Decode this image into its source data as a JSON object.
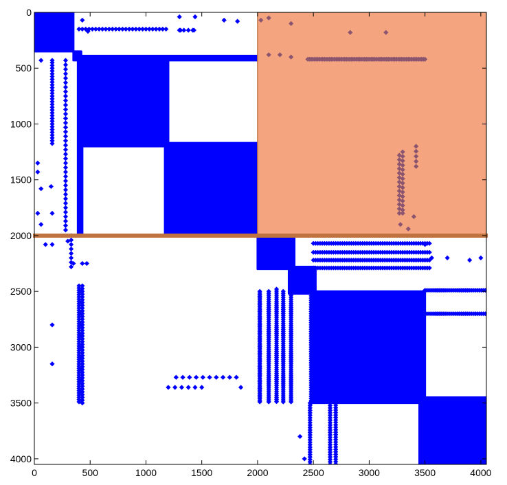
{
  "chart_data": {
    "type": "scatter",
    "title": "",
    "xlabel": "",
    "ylabel": "",
    "xlim": [
      0,
      4050
    ],
    "ylim": [
      0,
      4050
    ],
    "y_inverted": true,
    "grid": false,
    "legend": "none",
    "xticks": [
      0,
      500,
      1000,
      1500,
      2000,
      2500,
      3000,
      3500,
      4000
    ],
    "yticks": [
      0,
      500,
      1000,
      1500,
      2000,
      2500,
      3000,
      3500,
      4000
    ],
    "colors": {
      "points": "#0000ff",
      "highlight_fill": "#f4a57f",
      "highlight_border": "#c07848",
      "divider": "#c0733f",
      "overlap_points": "#8b5570",
      "axis": "#000000"
    },
    "dense_blocks": [
      {
        "x0": 0,
        "x1": 350,
        "y0": 0,
        "y1": 350
      },
      {
        "x0": 400,
        "x1": 1200,
        "y0": 400,
        "y1": 1200
      },
      {
        "x0": 1170,
        "x1": 2000,
        "y0": 1170,
        "y1": 2000
      },
      {
        "x0": 2000,
        "x1": 2330,
        "y0": 2000,
        "y1": 2300
      },
      {
        "x0": 2280,
        "x1": 2520,
        "y0": 2280,
        "y1": 2520
      },
      {
        "x0": 2500,
        "x1": 3500,
        "y0": 2500,
        "y1": 3500
      },
      {
        "x0": 3450,
        "x1": 4050,
        "y0": 3450,
        "y1": 4050
      },
      {
        "x0": 350,
        "x1": 420,
        "y0": 350,
        "y1": 430
      },
      {
        "x0": 390,
        "x1": 2000,
        "y0": 390,
        "y1": 430
      },
      {
        "x0": 390,
        "x1": 430,
        "y0": 390,
        "y1": 1990
      }
    ],
    "sparse_lines": [
      {
        "orientation": "h",
        "y": 150,
        "x0": 400,
        "x1": 1200,
        "step": 30
      },
      {
        "orientation": "h",
        "y": 160,
        "x0": 1300,
        "x1": 1450,
        "step": 40
      },
      {
        "orientation": "v",
        "x": 400,
        "y0": 2450,
        "y1": 3500,
        "step": 20
      },
      {
        "orientation": "v",
        "x": 430,
        "y0": 2450,
        "y1": 3500,
        "step": 25
      },
      {
        "orientation": "v",
        "x": 160,
        "y0": 450,
        "y1": 1180,
        "step": 25
      },
      {
        "orientation": "v",
        "x": 280,
        "y0": 430,
        "y1": 1980,
        "step": 40
      },
      {
        "orientation": "h",
        "y": 420,
        "x0": 2450,
        "x1": 3500,
        "step": 15
      },
      {
        "orientation": "v",
        "x": 3270,
        "y0": 1280,
        "y1": 1800,
        "step": 40
      },
      {
        "orientation": "v",
        "x": 3300,
        "y0": 1250,
        "y1": 1800,
        "step": 40
      },
      {
        "orientation": "v",
        "x": 3420,
        "y0": 1200,
        "y1": 1400,
        "step": 45
      },
      {
        "orientation": "h",
        "y": 2070,
        "x0": 2500,
        "x1": 3550,
        "step": 20
      },
      {
        "orientation": "h",
        "y": 2150,
        "x0": 2500,
        "x1": 3550,
        "step": 20
      },
      {
        "orientation": "h",
        "y": 2220,
        "x0": 2500,
        "x1": 3550,
        "step": 20
      },
      {
        "orientation": "h",
        "y": 2290,
        "x0": 2500,
        "x1": 3550,
        "step": 20
      },
      {
        "orientation": "h",
        "y": 2490,
        "x0": 3500,
        "x1": 4050,
        "step": 18
      },
      {
        "orientation": "h",
        "y": 2700,
        "x0": 3500,
        "x1": 4050,
        "step": 18
      },
      {
        "orientation": "v",
        "x": 2020,
        "y0": 2500,
        "y1": 3500,
        "step": 15
      },
      {
        "orientation": "v",
        "x": 2100,
        "y0": 2500,
        "y1": 3500,
        "step": 18
      },
      {
        "orientation": "v",
        "x": 2170,
        "y0": 2480,
        "y1": 3500,
        "step": 18
      },
      {
        "orientation": "v",
        "x": 2230,
        "y0": 2500,
        "y1": 3500,
        "step": 18
      },
      {
        "orientation": "v",
        "x": 2300,
        "y0": 2500,
        "y1": 3500,
        "step": 18
      },
      {
        "orientation": "v",
        "x": 2480,
        "y0": 2500,
        "y1": 3500,
        "step": 20
      },
      {
        "orientation": "v",
        "x": 2470,
        "y0": 3500,
        "y1": 4050,
        "step": 22
      },
      {
        "orientation": "v",
        "x": 2650,
        "y0": 3500,
        "y1": 4050,
        "step": 22
      },
      {
        "orientation": "v",
        "x": 2700,
        "y0": 3520,
        "y1": 4050,
        "step": 22
      },
      {
        "orientation": "h",
        "y": 3270,
        "x0": 1270,
        "x1": 1850,
        "step": 60
      },
      {
        "orientation": "h",
        "y": 3360,
        "x0": 1200,
        "x1": 1500,
        "step": 60
      },
      {
        "orientation": "v",
        "x": 330,
        "y0": 2000,
        "y1": 2300,
        "step": 40
      }
    ],
    "scatter_points": [
      [
        430,
        70
      ],
      [
        480,
        170
      ],
      [
        1300,
        40
      ],
      [
        1440,
        40
      ],
      [
        1700,
        70
      ],
      [
        1820,
        80
      ],
      [
        1310,
        160
      ],
      [
        1430,
        160
      ],
      [
        60,
        430
      ],
      [
        160,
        430
      ],
      [
        30,
        1350
      ],
      [
        30,
        1430
      ],
      [
        60,
        1580
      ],
      [
        150,
        1560
      ],
      [
        30,
        1800
      ],
      [
        60,
        1900
      ],
      [
        160,
        1800
      ],
      [
        100,
        2080
      ],
      [
        160,
        2080
      ],
      [
        300,
        2050
      ],
      [
        350,
        2250
      ],
      [
        430,
        2250
      ],
      [
        470,
        2250
      ],
      [
        160,
        2800
      ],
      [
        160,
        3150
      ],
      [
        1850,
        3360
      ],
      [
        2030,
        70
      ],
      [
        2100,
        50
      ],
      [
        2300,
        100
      ],
      [
        2300,
        400
      ],
      [
        2830,
        180
      ],
      [
        3150,
        180
      ],
      [
        2100,
        380
      ],
      [
        2200,
        380
      ],
      [
        3350,
        1940
      ],
      [
        3400,
        1830
      ],
      [
        3300,
        1800
      ],
      [
        3280,
        1900
      ],
      [
        3500,
        2080
      ],
      [
        3560,
        2200
      ],
      [
        3700,
        2200
      ],
      [
        3900,
        2220
      ],
      [
        4000,
        2200
      ],
      [
        3950,
        2700
      ],
      [
        2420,
        4000
      ],
      [
        2380,
        3800
      ]
    ],
    "highlight_region": {
      "x0": 2000,
      "x1": 4050,
      "y0": 0,
      "y1": 2000
    },
    "divider_line": {
      "y": 2000,
      "x0": 0,
      "x1": 4050
    }
  }
}
